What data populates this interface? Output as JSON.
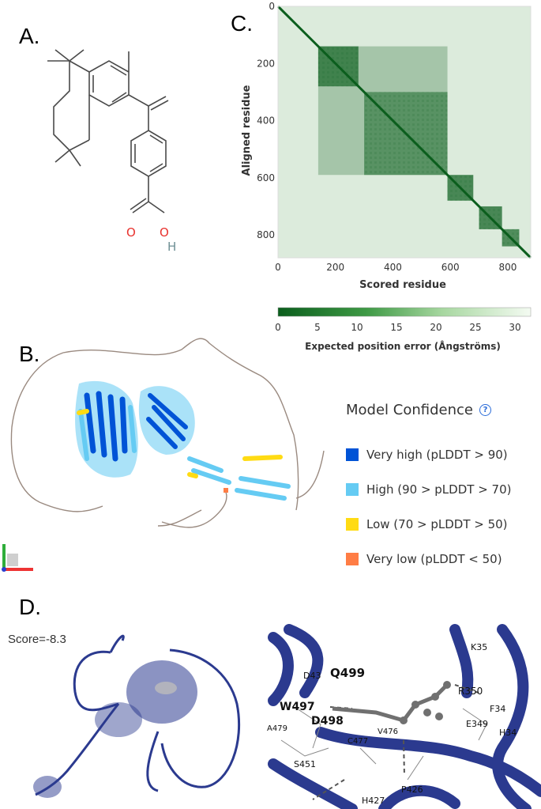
{
  "panels": {
    "A": {
      "label": "A."
    },
    "B": {
      "label": "B."
    },
    "C": {
      "label": "C."
    },
    "D": {
      "label": "D."
    }
  },
  "molecule": {
    "atoms": {
      "O1": "O",
      "O2": "O",
      "H": "H"
    },
    "colors": {
      "bond": "#4a4a4a",
      "oxygen": "#e8312d",
      "hydrogen": "#6e8f94"
    }
  },
  "heatmap": {
    "xlabel": "Scored residue",
    "ylabel": "Aligned residue",
    "xticks": [
      "0",
      "200",
      "400",
      "600",
      "800"
    ],
    "yticks": [
      "0",
      "200",
      "400",
      "600",
      "800"
    ],
    "colorbar_title": "Expected position error (Ångströms)",
    "colorbar_ticks": [
      "0",
      "5",
      "10",
      "15",
      "20",
      "25",
      "30"
    ],
    "colors": {
      "low": "#0b5e1d",
      "high": "#f4fbf2"
    }
  },
  "chart_data": {
    "type": "heatmap",
    "xlabel": "Scored residue",
    "ylabel": "Aligned residue",
    "xlim": [
      0,
      880
    ],
    "ylim": [
      0,
      880
    ],
    "colorbar_range": [
      0,
      32
    ],
    "colorbar_label": "Expected position error (Ångströms)",
    "diagonal_blocks": [
      {
        "start": 140,
        "end": 280,
        "error": 5
      },
      {
        "start": 300,
        "end": 590,
        "error": 8
      },
      {
        "start": 590,
        "end": 680,
        "error": 6
      },
      {
        "start": 700,
        "end": 780,
        "error": 6
      },
      {
        "start": 780,
        "end": 840,
        "error": 7
      }
    ]
  },
  "confidence_legend": {
    "title": "Model Confidence",
    "help_icon": "question-circle-icon",
    "items": [
      {
        "label": "Very high (pLDDT > 90)",
        "color": "#0053d6"
      },
      {
        "label": "High (90 > pLDDT > 70)",
        "color": "#65cbf3"
      },
      {
        "label": "Low (70 > pLDDT > 50)",
        "color": "#ffdb13"
      },
      {
        "label": "Very low (pLDDT < 50)",
        "color": "#ff7d45"
      }
    ]
  },
  "docking": {
    "score": "Score=-8.3",
    "residues": [
      "Q499",
      "D43",
      "W497",
      "D498",
      "A479",
      "C477",
      "V476",
      "S451",
      "H427",
      "P426",
      "R350",
      "F34",
      "E349",
      "H34",
      "K35"
    ]
  },
  "colors": {
    "ribbon": "#2b3a8f",
    "ligand": "#707070"
  }
}
